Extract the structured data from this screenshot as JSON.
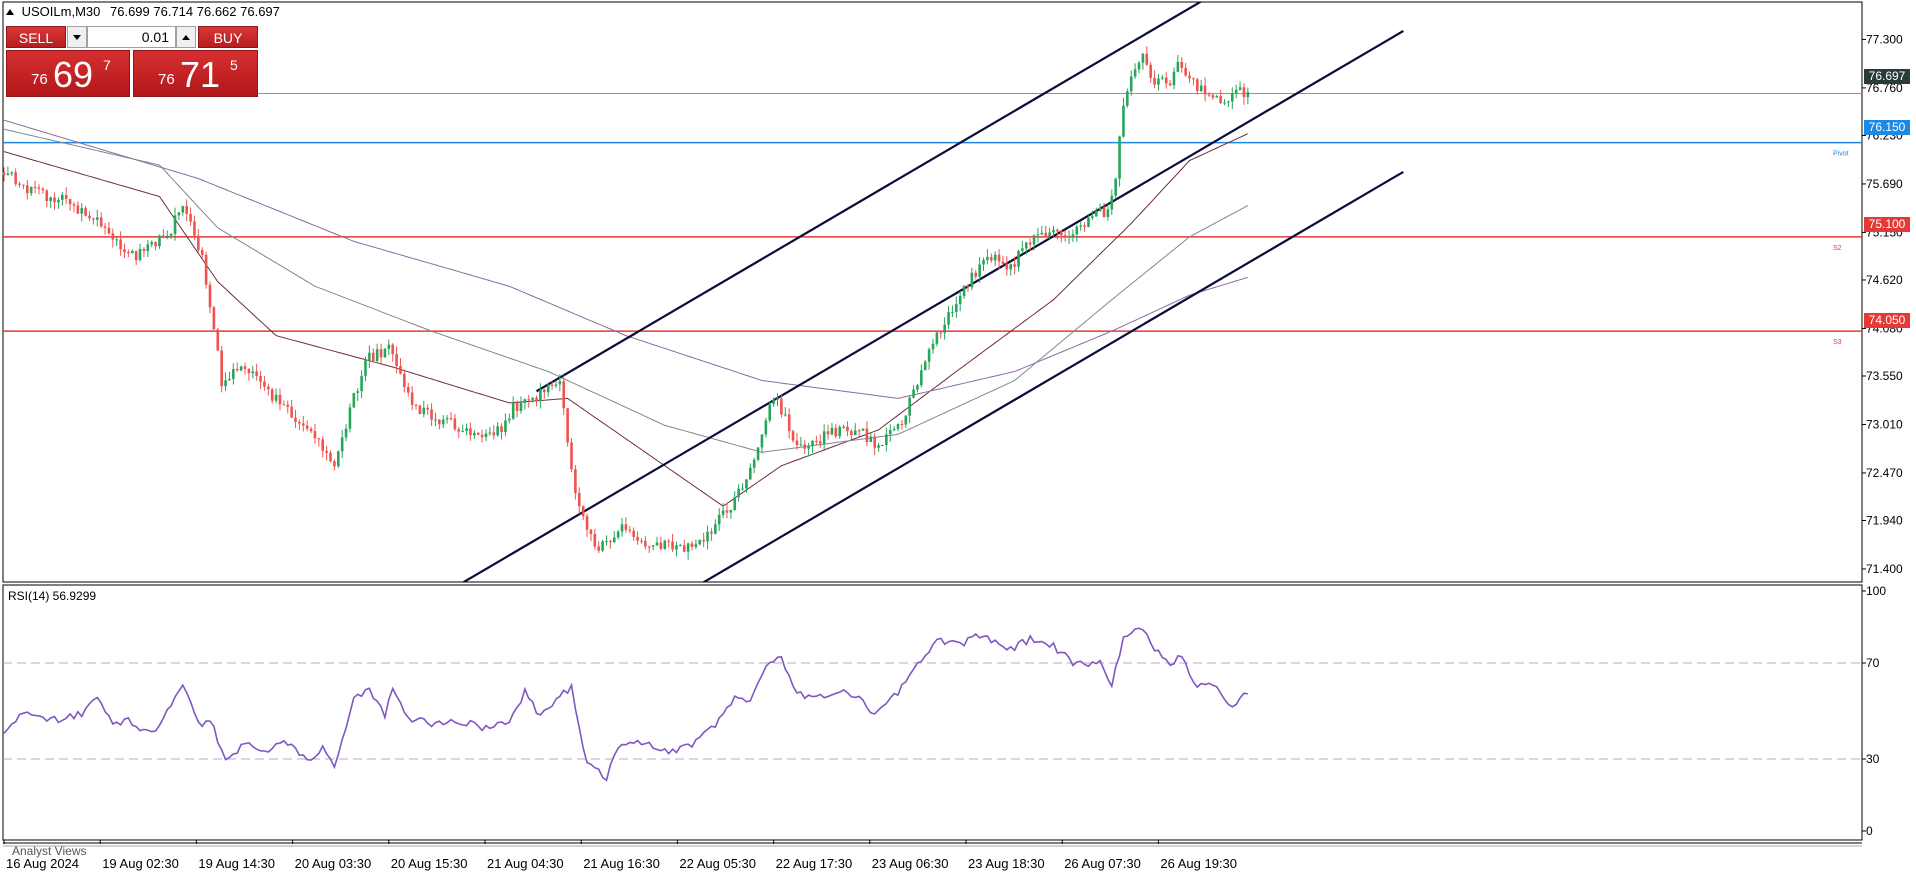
{
  "header": {
    "symbol": "USOILm,M30",
    "ohlc": "76.699 76.714 76.662 76.697"
  },
  "trade_panel": {
    "sell_label": "SELL",
    "buy_label": "BUY",
    "lot_value": "0.01",
    "sell_price": {
      "small": "76",
      "big": "69",
      "sup": "7"
    },
    "buy_price": {
      "small": "76",
      "big": "71",
      "sup": "5"
    }
  },
  "colors": {
    "bull": "#26a65b",
    "bear": "#ef5350",
    "channel": "#0b0b3b",
    "pivot": "#1e88e5",
    "support": "#e53935",
    "rsi": "#7e57c2",
    "ma_dark": "#6d2c3f",
    "ma_gray": "#7d8a8a",
    "ma_purple": "#8e6a9e"
  },
  "chart_data": [
    {
      "type": "candlestick",
      "symbol": "USOILm",
      "timeframe": "M30",
      "ylim": [
        71.15,
        77.55
      ],
      "y_ticks": [
        "77.300",
        "76.760",
        "76.230",
        "75.690",
        "75.150",
        "74.620",
        "74.080",
        "73.550",
        "73.010",
        "72.470",
        "71.940",
        "71.400"
      ],
      "x_ticks": [
        "16 Aug 2024",
        "19 Aug 02:30",
        "19 Aug 14:30",
        "20 Aug 03:30",
        "20 Aug 15:30",
        "21 Aug 04:30",
        "21 Aug 16:30",
        "22 Aug 05:30",
        "22 Aug 17:30",
        "23 Aug 06:30",
        "23 Aug 18:30",
        "26 Aug 07:30",
        "26 Aug 19:30"
      ],
      "anchors": [
        {
          "t": 0,
          "v": 75.8
        },
        {
          "t": 8,
          "v": 75.6
        },
        {
          "t": 16,
          "v": 75.5
        },
        {
          "t": 24,
          "v": 75.3
        },
        {
          "t": 32,
          "v": 74.85
        },
        {
          "t": 42,
          "v": 75.1
        },
        {
          "t": 46,
          "v": 75.45
        },
        {
          "t": 51,
          "v": 74.9
        },
        {
          "t": 56,
          "v": 73.5
        },
        {
          "t": 62,
          "v": 73.65
        },
        {
          "t": 72,
          "v": 73.2
        },
        {
          "t": 80,
          "v": 72.9
        },
        {
          "t": 85,
          "v": 72.55
        },
        {
          "t": 93,
          "v": 73.75
        },
        {
          "t": 99,
          "v": 73.85
        },
        {
          "t": 105,
          "v": 73.2
        },
        {
          "t": 113,
          "v": 73.05
        },
        {
          "t": 121,
          "v": 72.9
        },
        {
          "t": 126,
          "v": 72.85
        },
        {
          "t": 131,
          "v": 73.2
        },
        {
          "t": 139,
          "v": 73.35
        },
        {
          "t": 143,
          "v": 73.5
        },
        {
          "t": 147,
          "v": 72.2
        },
        {
          "t": 152,
          "v": 71.6
        },
        {
          "t": 158,
          "v": 71.85
        },
        {
          "t": 166,
          "v": 71.7
        },
        {
          "t": 174,
          "v": 71.6
        },
        {
          "t": 180,
          "v": 71.75
        },
        {
          "t": 186,
          "v": 72.05
        },
        {
          "t": 192,
          "v": 72.5
        },
        {
          "t": 196,
          "v": 73.1
        },
        {
          "t": 199,
          "v": 73.3
        },
        {
          "t": 204,
          "v": 72.75
        },
        {
          "t": 212,
          "v": 72.9
        },
        {
          "t": 220,
          "v": 72.95
        },
        {
          "t": 224,
          "v": 72.8
        },
        {
          "t": 230,
          "v": 72.95
        },
        {
          "t": 233,
          "v": 73.25
        },
        {
          "t": 238,
          "v": 73.8
        },
        {
          "t": 242,
          "v": 74.15
        },
        {
          "t": 246,
          "v": 74.5
        },
        {
          "t": 250,
          "v": 74.7
        },
        {
          "t": 254,
          "v": 74.9
        },
        {
          "t": 258,
          "v": 74.7
        },
        {
          "t": 262,
          "v": 74.95
        },
        {
          "t": 266,
          "v": 75.1
        },
        {
          "t": 270,
          "v": 75.15
        },
        {
          "t": 274,
          "v": 75.05
        },
        {
          "t": 277,
          "v": 75.2
        },
        {
          "t": 280,
          "v": 75.35
        },
        {
          "t": 284,
          "v": 75.4
        },
        {
          "t": 286,
          "v": 75.75
        },
        {
          "t": 288,
          "v": 76.6
        },
        {
          "t": 290,
          "v": 76.9
        },
        {
          "t": 293,
          "v": 77.1
        },
        {
          "t": 296,
          "v": 76.8
        },
        {
          "t": 300,
          "v": 76.85
        },
        {
          "t": 302,
          "v": 77.05
        },
        {
          "t": 305,
          "v": 76.85
        },
        {
          "t": 310,
          "v": 76.7
        },
        {
          "t": 314,
          "v": 76.62
        },
        {
          "t": 317,
          "v": 76.7
        },
        {
          "t": 320,
          "v": 76.697
        }
      ],
      "current_price": "76.697",
      "levels": [
        {
          "label": "Pivot",
          "price": "76.150"
        },
        {
          "label": "S2",
          "price": "75.100"
        },
        {
          "label": "S3",
          "price": "74.050"
        }
      ],
      "channel": {
        "slope_per_bar": 0.0254,
        "lines": [
          {
            "t": 137,
            "v": 73.38
          },
          {
            "t": 137,
            "v": 71.73
          },
          {
            "t": 137,
            "v": 70.16
          }
        ]
      },
      "moving_averages": [
        {
          "style": "ma_dark",
          "points": [
            {
              "t": 0,
              "v": 76.05
            },
            {
              "t": 40,
              "v": 75.55
            },
            {
              "t": 55,
              "v": 74.6
            },
            {
              "t": 70,
              "v": 74.0
            },
            {
              "t": 100,
              "v": 73.65
            },
            {
              "t": 130,
              "v": 73.25
            },
            {
              "t": 145,
              "v": 73.3
            },
            {
              "t": 170,
              "v": 72.55
            },
            {
              "t": 185,
              "v": 72.1
            },
            {
              "t": 200,
              "v": 72.55
            },
            {
              "t": 225,
              "v": 72.95
            },
            {
              "t": 245,
              "v": 73.6
            },
            {
              "t": 270,
              "v": 74.4
            },
            {
              "t": 290,
              "v": 75.25
            },
            {
              "t": 305,
              "v": 75.95
            },
            {
              "t": 320,
              "v": 76.25
            }
          ]
        },
        {
          "style": "ma_gray",
          "points": [
            {
              "t": 0,
              "v": 76.3
            },
            {
              "t": 40,
              "v": 75.9
            },
            {
              "t": 55,
              "v": 75.2
            },
            {
              "t": 80,
              "v": 74.55
            },
            {
              "t": 110,
              "v": 74.05
            },
            {
              "t": 140,
              "v": 73.6
            },
            {
              "t": 170,
              "v": 73.0
            },
            {
              "t": 195,
              "v": 72.7
            },
            {
              "t": 230,
              "v": 72.9
            },
            {
              "t": 260,
              "v": 73.5
            },
            {
              "t": 285,
              "v": 74.4
            },
            {
              "t": 305,
              "v": 75.1
            },
            {
              "t": 320,
              "v": 75.45
            }
          ]
        },
        {
          "style": "ma_purple",
          "points": [
            {
              "t": 0,
              "v": 76.4
            },
            {
              "t": 50,
              "v": 75.75
            },
            {
              "t": 90,
              "v": 75.05
            },
            {
              "t": 130,
              "v": 74.55
            },
            {
              "t": 160,
              "v": 74.0
            },
            {
              "t": 195,
              "v": 73.5
            },
            {
              "t": 230,
              "v": 73.3
            },
            {
              "t": 260,
              "v": 73.6
            },
            {
              "t": 285,
              "v": 74.05
            },
            {
              "t": 305,
              "v": 74.45
            },
            {
              "t": 320,
              "v": 74.65
            }
          ]
        }
      ]
    },
    {
      "type": "line",
      "title": "RSI(14) 56.9299",
      "ylim": [
        0,
        100
      ],
      "y_ticks": [
        "100",
        "70",
        "30",
        "0"
      ],
      "levels": [
        70,
        30
      ],
      "points": [
        {
          "t": 0,
          "v": 41
        },
        {
          "t": 5,
          "v": 50
        },
        {
          "t": 12,
          "v": 46
        },
        {
          "t": 20,
          "v": 49
        },
        {
          "t": 24,
          "v": 55
        },
        {
          "t": 28,
          "v": 44
        },
        {
          "t": 32,
          "v": 46
        },
        {
          "t": 38,
          "v": 40
        },
        {
          "t": 42,
          "v": 50
        },
        {
          "t": 46,
          "v": 61
        },
        {
          "t": 50,
          "v": 44
        },
        {
          "t": 53,
          "v": 47
        },
        {
          "t": 57,
          "v": 29
        },
        {
          "t": 62,
          "v": 36
        },
        {
          "t": 67,
          "v": 33
        },
        {
          "t": 72,
          "v": 37
        },
        {
          "t": 78,
          "v": 30
        },
        {
          "t": 82,
          "v": 34
        },
        {
          "t": 85,
          "v": 27
        },
        {
          "t": 90,
          "v": 56
        },
        {
          "t": 94,
          "v": 58
        },
        {
          "t": 98,
          "v": 48
        },
        {
          "t": 100,
          "v": 60
        },
        {
          "t": 104,
          "v": 47
        },
        {
          "t": 110,
          "v": 45
        },
        {
          "t": 116,
          "v": 46
        },
        {
          "t": 124,
          "v": 43
        },
        {
          "t": 130,
          "v": 46
        },
        {
          "t": 134,
          "v": 58
        },
        {
          "t": 138,
          "v": 47
        },
        {
          "t": 142,
          "v": 55
        },
        {
          "t": 146,
          "v": 60
        },
        {
          "t": 150,
          "v": 28
        },
        {
          "t": 155,
          "v": 22
        },
        {
          "t": 158,
          "v": 35
        },
        {
          "t": 165,
          "v": 37
        },
        {
          "t": 172,
          "v": 33
        },
        {
          "t": 178,
          "v": 37
        },
        {
          "t": 184,
          "v": 46
        },
        {
          "t": 188,
          "v": 55
        },
        {
          "t": 192,
          "v": 54
        },
        {
          "t": 196,
          "v": 68
        },
        {
          "t": 200,
          "v": 72
        },
        {
          "t": 204,
          "v": 57
        },
        {
          "t": 210,
          "v": 56
        },
        {
          "t": 216,
          "v": 58
        },
        {
          "t": 220,
          "v": 55
        },
        {
          "t": 224,
          "v": 49
        },
        {
          "t": 230,
          "v": 58
        },
        {
          "t": 234,
          "v": 68
        },
        {
          "t": 240,
          "v": 79
        },
        {
          "t": 246,
          "v": 78
        },
        {
          "t": 252,
          "v": 82
        },
        {
          "t": 258,
          "v": 75
        },
        {
          "t": 264,
          "v": 80
        },
        {
          "t": 270,
          "v": 77
        },
        {
          "t": 276,
          "v": 69
        },
        {
          "t": 282,
          "v": 71
        },
        {
          "t": 285,
          "v": 60
        },
        {
          "t": 288,
          "v": 81
        },
        {
          "t": 293,
          "v": 84
        },
        {
          "t": 297,
          "v": 74
        },
        {
          "t": 300,
          "v": 69
        },
        {
          "t": 303,
          "v": 73
        },
        {
          "t": 307,
          "v": 60
        },
        {
          "t": 312,
          "v": 61
        },
        {
          "t": 315,
          "v": 52
        },
        {
          "t": 320,
          "v": 56.93
        }
      ]
    }
  ],
  "analyst_views_label": "Analyst Views"
}
